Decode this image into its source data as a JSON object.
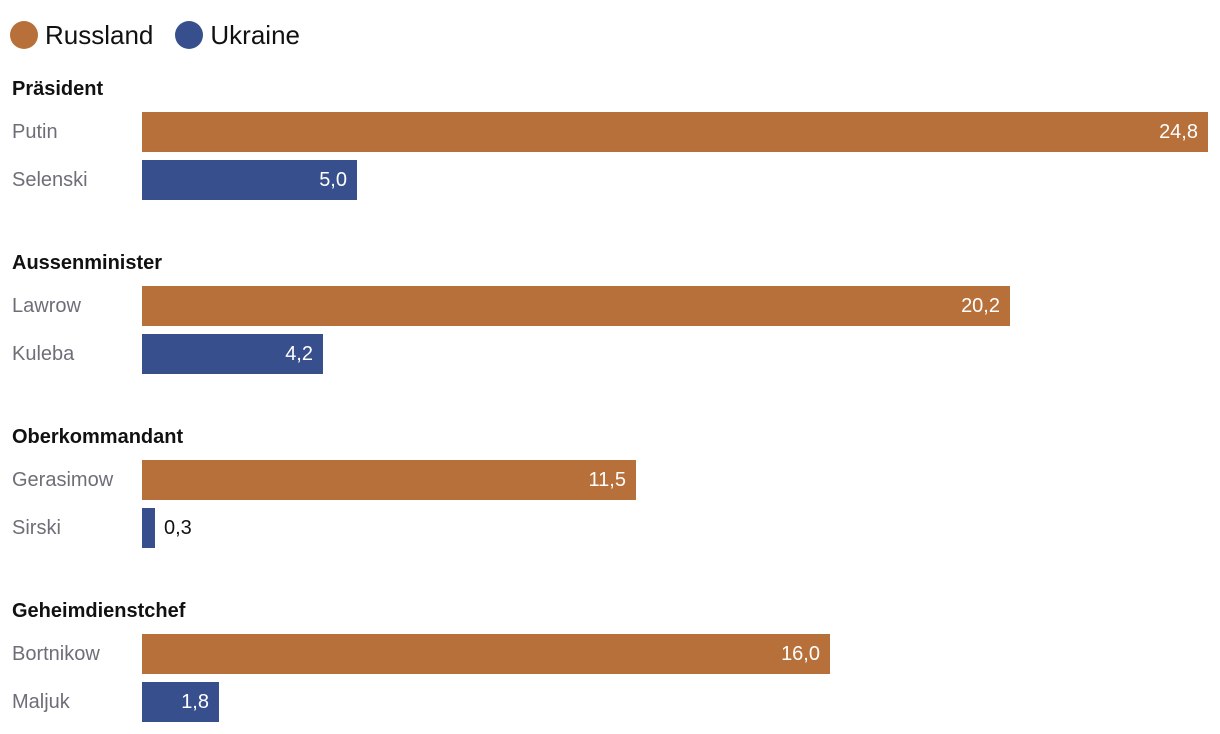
{
  "legend": [
    {
      "name": "Russland",
      "color": "#b8703a"
    },
    {
      "name": "Ukraine",
      "color": "#384f8e"
    }
  ],
  "chart_data": {
    "type": "bar",
    "orientation": "horizontal",
    "xlim": [
      0,
      24.8
    ],
    "grid": false,
    "legend_position": "top-left",
    "groups": [
      {
        "title": "Präsident",
        "rows": [
          {
            "label": "Putin",
            "value": 24.8,
            "value_label": "24,8",
            "series": "Russland"
          },
          {
            "label": "Selenski",
            "value": 5.0,
            "value_label": "5,0",
            "series": "Ukraine"
          }
        ]
      },
      {
        "title": "Aussenminister",
        "rows": [
          {
            "label": "Lawrow",
            "value": 20.2,
            "value_label": "20,2",
            "series": "Russland"
          },
          {
            "label": "Kuleba",
            "value": 4.2,
            "value_label": "4,2",
            "series": "Ukraine"
          }
        ]
      },
      {
        "title": "Oberkommandant",
        "rows": [
          {
            "label": "Gerasimow",
            "value": 11.5,
            "value_label": "11,5",
            "series": "Russland"
          },
          {
            "label": "Sirski",
            "value": 0.3,
            "value_label": "0,3",
            "series": "Ukraine"
          }
        ]
      },
      {
        "title": "Geheimdienstchef",
        "rows": [
          {
            "label": "Bortnikow",
            "value": 16.0,
            "value_label": "16,0",
            "series": "Russland"
          },
          {
            "label": "Maljuk",
            "value": 1.8,
            "value_label": "1,8",
            "series": "Ukraine"
          }
        ]
      }
    ]
  }
}
